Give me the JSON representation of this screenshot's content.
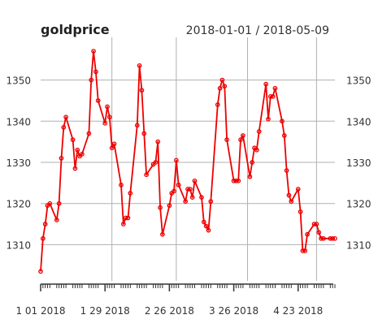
{
  "chart_data": {
    "type": "line",
    "title": "goldprice",
    "date_range": "2018-01-01 / 2018-05-09",
    "xlabel": "",
    "ylabel": "",
    "x_ticks": [
      "1 01 2018",
      "1 29 2018",
      "2 26 2018",
      "3 26 2018",
      "4 23 2018"
    ],
    "y_ticks": [
      1310,
      1320,
      1330,
      1340,
      1350
    ],
    "ylim": [
      1302,
      1358
    ],
    "grid": true,
    "colors": {
      "series": "#ee0000",
      "grid": "#b0b0b0",
      "axis": "#333333",
      "text": "#333333"
    },
    "series": [
      {
        "x": [
          "2018-01-01",
          "2018-01-02",
          "2018-01-03",
          "2018-01-04",
          "2018-01-05",
          "2018-01-08",
          "2018-01-09",
          "2018-01-10",
          "2018-01-11",
          "2018-01-12",
          "2018-01-15",
          "2018-01-16",
          "2018-01-17",
          "2018-01-18",
          "2018-01-19",
          "2018-01-22",
          "2018-01-23",
          "2018-01-24",
          "2018-01-25",
          "2018-01-26",
          "2018-01-29",
          "2018-01-30",
          "2018-01-31",
          "2018-02-01",
          "2018-02-02",
          "2018-02-05",
          "2018-02-06",
          "2018-02-07",
          "2018-02-08",
          "2018-02-09",
          "2018-02-12",
          "2018-02-13",
          "2018-02-14",
          "2018-02-15",
          "2018-02-16",
          "2018-02-19",
          "2018-02-20",
          "2018-02-21",
          "2018-02-22",
          "2018-02-23",
          "2018-02-26",
          "2018-02-27",
          "2018-02-28",
          "2018-03-01",
          "2018-03-02",
          "2018-03-05",
          "2018-03-06",
          "2018-03-07",
          "2018-03-08",
          "2018-03-09",
          "2018-03-12",
          "2018-03-13",
          "2018-03-14",
          "2018-03-15",
          "2018-03-16",
          "2018-03-19",
          "2018-03-20",
          "2018-03-21",
          "2018-03-22",
          "2018-03-23",
          "2018-03-26",
          "2018-03-27",
          "2018-03-28",
          "2018-03-29",
          "2018-03-30",
          "2018-04-02",
          "2018-04-03",
          "2018-04-04",
          "2018-04-05",
          "2018-04-06",
          "2018-04-09",
          "2018-04-10",
          "2018-04-11",
          "2018-04-12",
          "2018-04-13",
          "2018-04-16",
          "2018-04-17",
          "2018-04-18",
          "2018-04-19",
          "2018-04-20",
          "2018-04-23",
          "2018-04-24",
          "2018-04-25",
          "2018-04-26",
          "2018-04-27",
          "2018-04-30",
          "2018-05-01",
          "2018-05-02",
          "2018-05-03",
          "2018-05-04",
          "2018-05-07",
          "2018-05-08",
          "2018-05-09"
        ],
        "values": [
          1303.5,
          1311.5,
          1315.0,
          1319.5,
          1320.0,
          1316.0,
          1320.0,
          1331.0,
          1338.5,
          1341.0,
          1335.5,
          1328.5,
          1333.0,
          1331.5,
          1332.0,
          1337.0,
          1350.0,
          1357.0,
          1352.0,
          1345.0,
          1339.5,
          1343.5,
          1341.0,
          1333.5,
          1334.5,
          1324.5,
          1315.0,
          1316.5,
          1316.5,
          1322.5,
          1339.0,
          1353.5,
          1347.5,
          1337.0,
          1327.0,
          1329.5,
          1330.0,
          1335.0,
          1319.0,
          1312.5,
          1319.5,
          1322.5,
          1323.0,
          1330.5,
          1324.5,
          1320.5,
          1323.5,
          1323.5,
          1321.5,
          1325.5,
          1321.5,
          1315.5,
          1314.5,
          1313.5,
          1320.5,
          1344.0,
          1348.0,
          1350.0,
          1348.5,
          1335.5,
          1325.5,
          1325.5,
          1325.5,
          1335.5,
          1336.5,
          1326.5,
          1330.0,
          1333.5,
          1333.0,
          1337.5,
          1349.0,
          1340.5,
          1346.0,
          1346.0,
          1348.0,
          1340.0,
          1336.5,
          1328.0,
          1322.0,
          1320.5,
          1323.5,
          1318.0,
          1308.5,
          1308.5,
          1312.5,
          1315.0,
          1315.0,
          1313.0,
          1311.5,
          1311.5,
          1311.5,
          1311.5,
          1311.5
        ]
      }
    ]
  }
}
